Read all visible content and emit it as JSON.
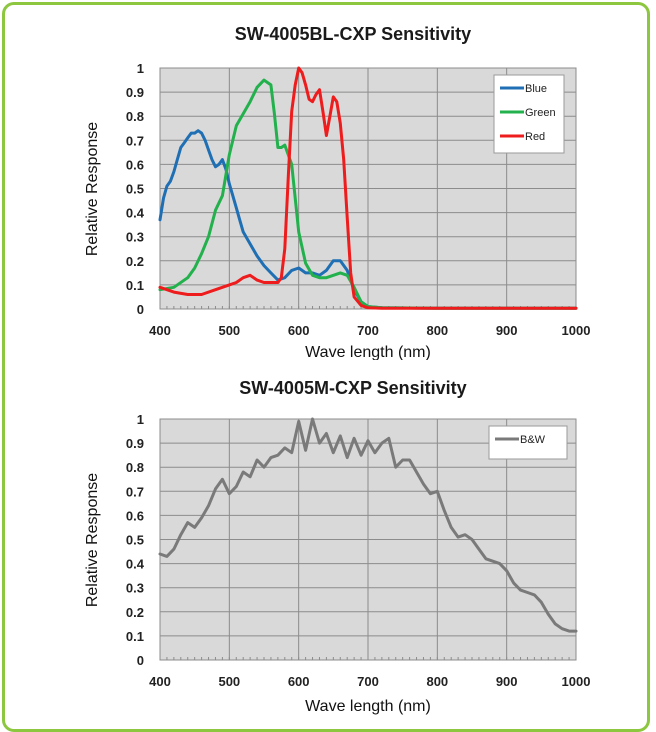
{
  "colors": {
    "frame_border": "#8dc63f",
    "plot_background": "#d9d9d9",
    "grid": "#8c8c8c",
    "blue": "#1f6fb4",
    "green": "#22b14c",
    "red": "#ee1c1c",
    "bw": "#7a7a7a"
  },
  "chart_data": [
    {
      "type": "line",
      "title": "SW-4005BL-CXP Sensitivity",
      "xlabel": "Wave length (nm)",
      "ylabel": "Relative Response",
      "xlim": [
        400,
        1000
      ],
      "ylim": [
        0,
        1
      ],
      "xticks": [
        "400",
        "500",
        "600",
        "700",
        "800",
        "900",
        "1000"
      ],
      "yticks": [
        "0",
        "0.1",
        "0.2",
        "0.3",
        "0.4",
        "0.5",
        "0.6",
        "0.7",
        "0.8",
        "0.9",
        "1"
      ],
      "grid": true,
      "legend_position": "top-right",
      "series": [
        {
          "name": "Blue",
          "color": "#1f6fb4",
          "x": [
            400,
            405,
            410,
            415,
            420,
            425,
            430,
            435,
            440,
            445,
            450,
            455,
            460,
            465,
            470,
            475,
            480,
            485,
            490,
            495,
            500,
            505,
            510,
            515,
            520,
            530,
            540,
            550,
            560,
            570,
            580,
            590,
            600,
            610,
            620,
            630,
            640,
            650,
            660,
            670,
            680,
            690,
            700,
            720,
            800,
            1000
          ],
          "y": [
            0.37,
            0.46,
            0.51,
            0.53,
            0.57,
            0.62,
            0.67,
            0.69,
            0.71,
            0.73,
            0.73,
            0.74,
            0.73,
            0.7,
            0.66,
            0.62,
            0.59,
            0.6,
            0.62,
            0.58,
            0.52,
            0.47,
            0.42,
            0.37,
            0.32,
            0.27,
            0.22,
            0.18,
            0.15,
            0.12,
            0.13,
            0.16,
            0.17,
            0.15,
            0.15,
            0.14,
            0.16,
            0.2,
            0.2,
            0.16,
            0.08,
            0.03,
            0.01,
            0.005,
            0.003,
            0.003
          ]
        },
        {
          "name": "Green",
          "color": "#22b14c",
          "x": [
            400,
            420,
            440,
            450,
            460,
            470,
            480,
            490,
            500,
            510,
            520,
            530,
            540,
            550,
            560,
            565,
            570,
            575,
            580,
            590,
            600,
            610,
            620,
            630,
            640,
            650,
            660,
            670,
            680,
            690,
            700,
            720,
            800,
            1000
          ],
          "y": [
            0.08,
            0.09,
            0.13,
            0.17,
            0.23,
            0.3,
            0.41,
            0.47,
            0.64,
            0.76,
            0.81,
            0.86,
            0.92,
            0.95,
            0.93,
            0.81,
            0.67,
            0.67,
            0.68,
            0.6,
            0.32,
            0.19,
            0.14,
            0.13,
            0.13,
            0.14,
            0.15,
            0.14,
            0.09,
            0.03,
            0.01,
            0.005,
            0.003,
            0.003
          ]
        },
        {
          "name": "Red",
          "color": "#ee1c1c",
          "x": [
            400,
            420,
            440,
            460,
            480,
            500,
            510,
            520,
            530,
            540,
            550,
            560,
            570,
            575,
            580,
            585,
            590,
            595,
            600,
            605,
            610,
            615,
            620,
            625,
            630,
            635,
            640,
            645,
            650,
            655,
            660,
            665,
            670,
            675,
            680,
            690,
            700,
            720,
            800,
            1000
          ],
          "y": [
            0.09,
            0.07,
            0.06,
            0.06,
            0.08,
            0.1,
            0.11,
            0.13,
            0.14,
            0.12,
            0.11,
            0.11,
            0.11,
            0.13,
            0.25,
            0.55,
            0.82,
            0.93,
            1.0,
            0.98,
            0.93,
            0.87,
            0.86,
            0.89,
            0.91,
            0.82,
            0.72,
            0.8,
            0.88,
            0.86,
            0.77,
            0.62,
            0.38,
            0.15,
            0.05,
            0.015,
            0.005,
            0.003,
            0.003,
            0.003
          ]
        }
      ]
    },
    {
      "type": "line",
      "title": "SW-4005M-CXP Sensitivity",
      "xlabel": "Wave length (nm)",
      "ylabel": "Relative Response",
      "xlim": [
        400,
        1000
      ],
      "ylim": [
        0,
        1
      ],
      "xticks": [
        "400",
        "500",
        "600",
        "700",
        "800",
        "900",
        "1000"
      ],
      "yticks": [
        "0",
        "0.1",
        "0.2",
        "0.3",
        "0.4",
        "0.5",
        "0.6",
        "0.7",
        "0.8",
        "0.9",
        "1"
      ],
      "grid": true,
      "legend_position": "top-right",
      "series": [
        {
          "name": "B&W",
          "color": "#7a7a7a",
          "x": [
            400,
            410,
            420,
            430,
            440,
            450,
            460,
            470,
            480,
            490,
            500,
            510,
            520,
            530,
            540,
            550,
            560,
            570,
            580,
            590,
            600,
            610,
            620,
            630,
            640,
            650,
            660,
            670,
            680,
            690,
            700,
            710,
            720,
            730,
            740,
            750,
            760,
            770,
            780,
            790,
            800,
            810,
            820,
            830,
            840,
            850,
            860,
            870,
            880,
            890,
            900,
            910,
            920,
            930,
            940,
            950,
            960,
            970,
            980,
            990,
            1000
          ],
          "y": [
            0.44,
            0.43,
            0.46,
            0.52,
            0.57,
            0.55,
            0.59,
            0.64,
            0.71,
            0.75,
            0.69,
            0.72,
            0.78,
            0.76,
            0.83,
            0.8,
            0.84,
            0.85,
            0.88,
            0.86,
            0.99,
            0.87,
            1.0,
            0.9,
            0.94,
            0.86,
            0.93,
            0.84,
            0.92,
            0.85,
            0.91,
            0.86,
            0.9,
            0.92,
            0.8,
            0.83,
            0.83,
            0.78,
            0.73,
            0.69,
            0.7,
            0.62,
            0.55,
            0.51,
            0.52,
            0.5,
            0.46,
            0.42,
            0.41,
            0.4,
            0.37,
            0.32,
            0.29,
            0.28,
            0.27,
            0.24,
            0.19,
            0.15,
            0.13,
            0.12,
            0.12
          ]
        }
      ]
    }
  ]
}
